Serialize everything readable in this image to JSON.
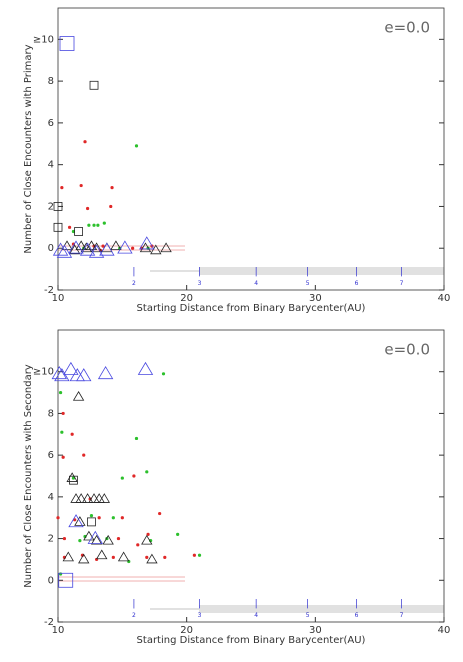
{
  "chart_data": [
    {
      "type": "scatter",
      "annotation": "e=0.0",
      "xlabel": "Starting Distance from Binary Barycenter(AU)",
      "ylabel": "Number of Close Encounters with Primary",
      "xlim": [
        10,
        40
      ],
      "xticks": [
        10,
        20,
        30,
        40
      ],
      "ylim": [
        -2,
        11.5
      ],
      "yticks": [
        -2,
        0,
        2,
        4,
        6,
        8,
        {
          "value": 10,
          "label": "≥10"
        }
      ],
      "resonances": [
        {
          "x": 15.9,
          "label": "2"
        },
        {
          "x": 21.0,
          "label": "3"
        },
        {
          "x": 25.4,
          "label": "4"
        },
        {
          "x": 29.4,
          "label": "5"
        },
        {
          "x": 33.2,
          "label": "6"
        },
        {
          "x": 36.7,
          "label": "7"
        }
      ],
      "series": [
        {
          "color": "#e02828",
          "marker": "dot",
          "marker_size": 1.6,
          "x": [
            10.3,
            11.8,
            12.1,
            12.3,
            13.5,
            14.2,
            14.1,
            10.9,
            11.2,
            12.8,
            13.3,
            15.8,
            16.5,
            17.3
          ],
          "values": [
            2.9,
            3.0,
            5.1,
            1.9,
            0.1,
            2.9,
            2.0,
            1.0,
            0.2,
            0.1,
            -0.1,
            0.0,
            0.0,
            0.1
          ]
        },
        {
          "color": "#2cc02c",
          "marker": "dot",
          "marker_size": 1.6,
          "x": [
            16.1,
            12.4,
            12.8,
            13.1,
            13.6,
            11.2,
            12.0,
            14.8,
            17.0
          ],
          "values": [
            4.9,
            1.1,
            1.1,
            1.1,
            1.2,
            0.8,
            0.0,
            0.0,
            0.0
          ]
        },
        {
          "color": "#222222",
          "marker": "triangle",
          "marker_size": 5,
          "x": [
            10.7,
            11.3,
            11.8,
            12.2,
            12.6,
            13.0,
            13.8,
            14.5,
            16.8,
            18.4,
            17.6
          ],
          "values": [
            0.1,
            -0.1,
            0.1,
            0.0,
            0.1,
            0.0,
            0.0,
            0.1,
            0.0,
            0.0,
            -0.1
          ]
        },
        {
          "color": "#4848e0",
          "marker": "triangle",
          "marker_size": 7,
          "x": [
            10.2,
            10.5,
            11.4,
            12.3,
            13.8,
            15.2,
            16.9,
            13.0
          ],
          "values": [
            -0.1,
            -0.2,
            0.0,
            -0.1,
            -0.1,
            0.0,
            0.2,
            -0.2
          ]
        },
        {
          "color": "#222222",
          "marker": "square",
          "marker_size": 4,
          "x": [
            10.0,
            12.8,
            11.6,
            10.0
          ],
          "values": [
            2.0,
            7.8,
            0.8,
            1.0
          ]
        },
        {
          "color": "#4848e0",
          "marker": "square",
          "marker_size": 7,
          "x": [
            10.7
          ],
          "values": [
            9.8
          ]
        }
      ]
    },
    {
      "type": "scatter",
      "annotation": "e=0.0",
      "xlabel": "Starting Distance from Binary Barycenter(AU)",
      "ylabel": "Number of Close Encounters with Secondary",
      "xlim": [
        10,
        40
      ],
      "xticks": [
        10,
        20,
        30,
        40
      ],
      "ylim": [
        -2,
        12
      ],
      "yticks": [
        -2,
        0,
        2,
        4,
        6,
        8,
        {
          "value": 10,
          "label": "≥10"
        }
      ],
      "resonances": [
        {
          "x": 15.9,
          "label": "2"
        },
        {
          "x": 21.0,
          "label": "3"
        },
        {
          "x": 25.4,
          "label": "4"
        },
        {
          "x": 29.4,
          "label": "5"
        },
        {
          "x": 33.2,
          "label": "6"
        },
        {
          "x": 36.7,
          "label": "7"
        }
      ],
      "series": [
        {
          "color": "#e02828",
          "marker": "dot",
          "marker_size": 1.6,
          "x": [
            10.4,
            10.4,
            11.1,
            12.0,
            15.9,
            12.5,
            13.2,
            14.7,
            16.2,
            17.9,
            15.0,
            10.0,
            10.5,
            17.0,
            11.3,
            18.3,
            16.9,
            14.3,
            13.0,
            11.9,
            10.5,
            20.6
          ],
          "values": [
            8.0,
            5.9,
            7.0,
            6.0,
            5.0,
            3.9,
            3.0,
            2.0,
            1.7,
            3.2,
            3.0,
            3.0,
            2.0,
            2.2,
            2.9,
            1.1,
            1.1,
            1.1,
            1.0,
            1.2,
            1.1,
            1.2
          ]
        },
        {
          "color": "#2cc02c",
          "marker": "dot",
          "marker_size": 1.6,
          "x": [
            10.2,
            10.3,
            11.2,
            16.1,
            16.9,
            18.2,
            15.0,
            14.3,
            10.2,
            12.1,
            13.8,
            19.3,
            21.0,
            15.5,
            11.7,
            17.2,
            12.6
          ],
          "values": [
            9.0,
            7.1,
            4.9,
            6.8,
            5.2,
            9.9,
            4.9,
            3.0,
            0.3,
            2.1,
            2.0,
            2.2,
            1.2,
            0.9,
            1.9,
            1.9,
            3.1
          ]
        },
        {
          "color": "#222222",
          "marker": "triangle",
          "marker_size": 5,
          "x": [
            11.6,
            11.1,
            11.4,
            11.8,
            12.3,
            12.8,
            13.2,
            13.6,
            11.7,
            12.4,
            13.0,
            13.9,
            16.9,
            12.0,
            13.4,
            15.1,
            10.8,
            17.3
          ],
          "values": [
            8.8,
            4.9,
            3.9,
            3.9,
            3.9,
            3.9,
            3.9,
            3.9,
            2.8,
            2.1,
            1.9,
            1.9,
            1.9,
            1.0,
            1.2,
            1.1,
            1.1,
            1.0
          ]
        },
        {
          "color": "#4848e0",
          "marker": "triangle",
          "marker_size": 7,
          "x": [
            10.1,
            10.3,
            11.0,
            11.5,
            12.0,
            13.7,
            16.8,
            11.4,
            12.9
          ],
          "values": [
            9.9,
            9.8,
            10.1,
            9.8,
            9.8,
            9.9,
            10.1,
            2.8,
            2.0
          ]
        },
        {
          "color": "#222222",
          "marker": "square",
          "marker_size": 4,
          "x": [
            11.2,
            12.6
          ],
          "values": [
            4.8,
            2.8
          ]
        },
        {
          "color": "#4848e0",
          "marker": "square",
          "marker_size": 7,
          "x": [
            10.6
          ],
          "values": [
            0.0
          ]
        }
      ]
    }
  ]
}
